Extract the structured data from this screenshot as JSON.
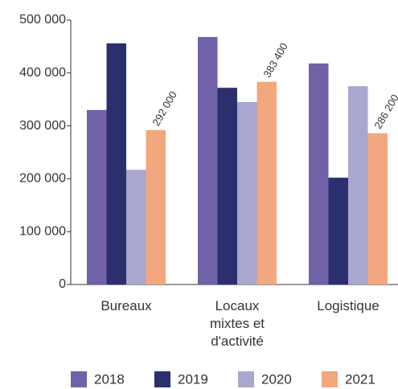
{
  "chart_data": {
    "type": "bar",
    "categories": [
      "Bureaux",
      "Locaux mixtes et d'activité",
      "Logistique"
    ],
    "series": [
      {
        "name": "2018",
        "color": "#7162a8",
        "values": [
          330000,
          468000,
          418000
        ]
      },
      {
        "name": "2019",
        "color": "#2b2f6e",
        "values": [
          456000,
          372000,
          202000
        ]
      },
      {
        "name": "2020",
        "color": "#a9a6cf",
        "values": [
          217000,
          345000,
          375000
        ]
      },
      {
        "name": "2021",
        "color": "#f2a77f",
        "values": [
          292000,
          383400,
          286200
        ],
        "value_labels": [
          "292 000",
          "383 400",
          "286 200"
        ]
      }
    ],
    "ylim": [
      0,
      500000
    ],
    "yticks": [
      0,
      {
        "value": 100000,
        "label": "100 000"
      },
      {
        "value": 200000,
        "label": "200 000"
      },
      {
        "value": 300000,
        "label": "300 000"
      },
      {
        "value": 400000,
        "label": "400 000"
      },
      {
        "value": 500000,
        "label": "500 000"
      }
    ],
    "grid": false,
    "legend": "bottom"
  }
}
